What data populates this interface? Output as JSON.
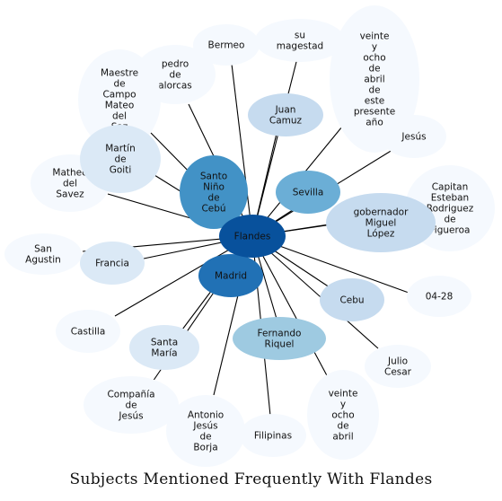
{
  "title": "Subjects Mentioned Frequently With Flandes",
  "colors": {
    "edge": "#000000",
    "faint": "#f5f9fe",
    "light": "#dbe9f6",
    "pale": "#c6dbef",
    "sky": "#9ecae1",
    "mid": "#6baed6",
    "blue": "#4292c6",
    "deep": "#2171b5",
    "navy": "#08519c"
  },
  "center": {
    "label": "Flandes",
    "color": "navy"
  },
  "nodes": [
    {
      "id": "bermeo",
      "label": "Bermeo",
      "color": "faint"
    },
    {
      "id": "su-magestad",
      "label": "su\nmagestad",
      "color": "faint"
    },
    {
      "id": "veinte-ocho-abril-presente",
      "label": "veinte\ny\nocho\nde\nabril\nde\neste\npresente\naño",
      "color": "faint"
    },
    {
      "id": "pedro-alarcas",
      "label": "pedro\nde\nalorcas",
      "color": "faint"
    },
    {
      "id": "maestre-campo",
      "label": "Maestre\nde\nCampo\nMateo\ndel\nSaz",
      "color": "faint"
    },
    {
      "id": "martin-goiti",
      "label": "Martín\nde\nGoiti",
      "color": "light"
    },
    {
      "id": "juan-camuz",
      "label": "Juan\nCamuz",
      "color": "pale"
    },
    {
      "id": "jesus",
      "label": "Jesús",
      "color": "faint"
    },
    {
      "id": "santo-nino",
      "label": "Santo\nNiño\nde\nCebú",
      "color": "blue"
    },
    {
      "id": "sevilla",
      "label": "Sevilla",
      "color": "mid"
    },
    {
      "id": "capitan-esteban",
      "label": "Capitan\nEsteban\nRodriguez\nde\nFigueroa",
      "color": "faint"
    },
    {
      "id": "gobernador",
      "label": "gobernador\nMiguel\nLópez",
      "color": "pale"
    },
    {
      "id": "matheo",
      "label": "Matheo\ndel\nSavez",
      "color": "faint"
    },
    {
      "id": "san-agustin",
      "label": "San\nAgustin",
      "color": "faint"
    },
    {
      "id": "francia",
      "label": "Francia",
      "color": "light"
    },
    {
      "id": "madrid",
      "label": "Madrid",
      "color": "deep"
    },
    {
      "id": "cebu",
      "label": "Cebu",
      "color": "pale"
    },
    {
      "id": "d0428",
      "label": "04-28",
      "color": "faint"
    },
    {
      "id": "castilla",
      "label": "Castilla",
      "color": "faint"
    },
    {
      "id": "santa-maria",
      "label": "Santa\nMaría",
      "color": "light"
    },
    {
      "id": "fernando",
      "label": "Fernando\nRiquel",
      "color": "sky"
    },
    {
      "id": "julio",
      "label": "Julio\nCesar",
      "color": "faint"
    },
    {
      "id": "compania",
      "label": "Compañía\nde\nJesús",
      "color": "faint"
    },
    {
      "id": "antonio",
      "label": "Antonio\nJesús\nde\nBorja",
      "color": "faint"
    },
    {
      "id": "filipinas",
      "label": "Filipinas",
      "color": "faint"
    },
    {
      "id": "veinte-ocho-abril",
      "label": "veinte\ny\nocho\nde\nabril",
      "color": "faint"
    }
  ]
}
